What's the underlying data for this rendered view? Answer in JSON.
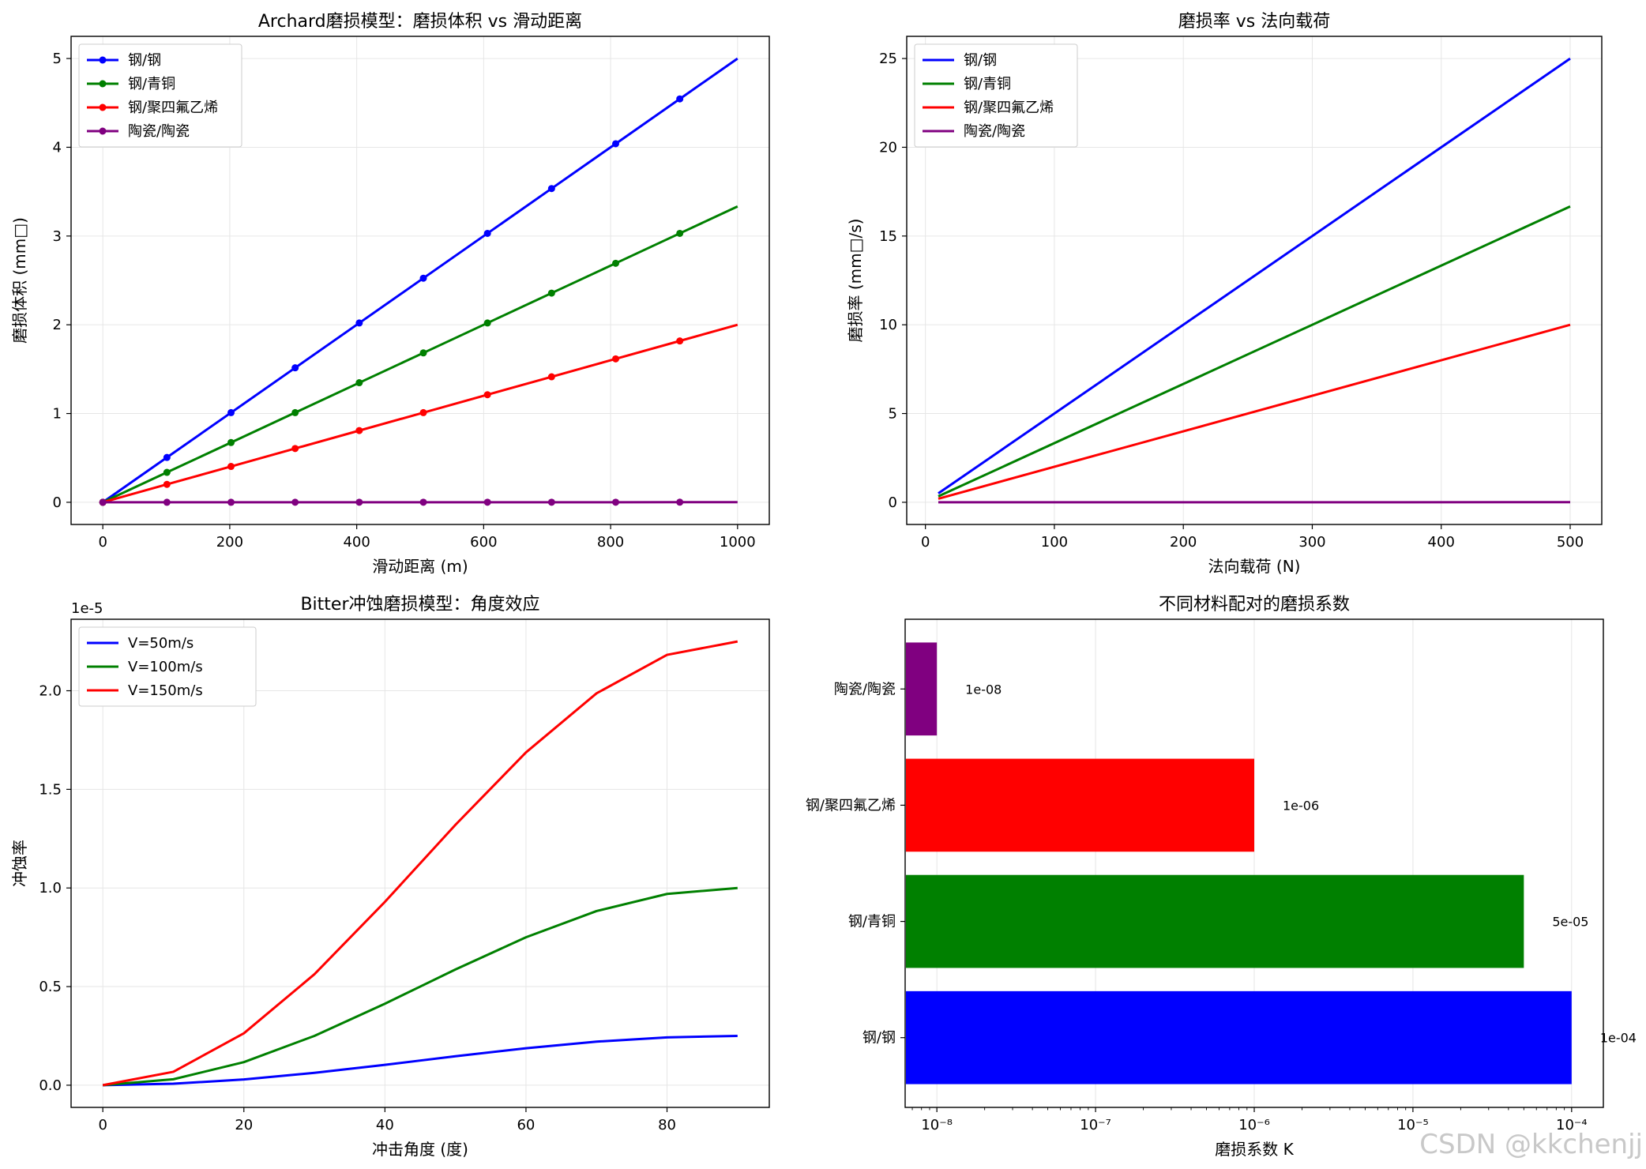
{
  "chart_data": [
    {
      "type": "line",
      "title": "Archard磨损模型：磨损体积 vs 滑动距离",
      "xlabel": "滑动距离 (m)",
      "ylabel": "磨损体积 (mm□)",
      "xlim": [
        -50,
        1050
      ],
      "ylim": [
        -0.25,
        5.25
      ],
      "xticks": [
        0,
        200,
        400,
        600,
        800,
        1000
      ],
      "yticks": [
        0,
        1,
        2,
        3,
        4,
        5
      ],
      "grid": true,
      "legend": "top-left",
      "markers": true,
      "x": [
        0,
        101,
        202,
        303,
        404,
        505,
        606,
        707,
        808,
        909,
        1000
      ],
      "series": [
        {
          "name": "钢/钢",
          "color": "#0000ff",
          "values": [
            0,
            0.505,
            1.01,
            1.515,
            2.02,
            2.525,
            3.03,
            3.535,
            4.04,
            4.545,
            5.0
          ]
        },
        {
          "name": "钢/青铜",
          "color": "#008000",
          "values": [
            0,
            0.337,
            0.673,
            1.01,
            1.347,
            1.683,
            2.02,
            2.357,
            2.693,
            3.03,
            3.333
          ]
        },
        {
          "name": "钢/聚四氟乙烯",
          "color": "#ff0000",
          "values": [
            0,
            0.202,
            0.404,
            0.606,
            0.808,
            1.01,
            1.212,
            1.414,
            1.616,
            1.818,
            2.0
          ]
        },
        {
          "name": "陶瓷/陶瓷",
          "color": "#800080",
          "values": [
            0,
            0.0001,
            0.0002,
            0.0003,
            0.0004,
            0.0005,
            0.0006,
            0.0007,
            0.0008,
            0.0009,
            0.001
          ]
        }
      ]
    },
    {
      "type": "line",
      "title": "磨损率 vs 法向载荷",
      "xlabel": "法向载荷 (N)",
      "ylabel": "磨损率 (mm□/s)",
      "xlim": [
        -14.5,
        524.5
      ],
      "ylim": [
        -1.25,
        26.25
      ],
      "xticks": [
        0,
        100,
        200,
        300,
        400,
        500
      ],
      "yticks": [
        0,
        5,
        10,
        15,
        20,
        25
      ],
      "grid": true,
      "legend": "top-left",
      "markers": false,
      "x": [
        10,
        500
      ],
      "series": [
        {
          "name": "钢/钢",
          "color": "#0000ff",
          "values": [
            0.5,
            25
          ]
        },
        {
          "name": "钢/青铜",
          "color": "#008000",
          "values": [
            0.333,
            16.667
          ]
        },
        {
          "name": "钢/聚四氟乙烯",
          "color": "#ff0000",
          "values": [
            0.2,
            10
          ]
        },
        {
          "name": "陶瓷/陶瓷",
          "color": "#800080",
          "values": [
            0.0001,
            0.005
          ]
        }
      ]
    },
    {
      "type": "line",
      "title": "Bitter冲蚀磨损模型：角度效应",
      "xlabel": "冲击角度 (度)",
      "ylabel": "冲蚀率",
      "offset_text": "1e-5",
      "xlim": [
        -4.5,
        94.5
      ],
      "ylim": [
        -0.1125,
        2.3625
      ],
      "xticks": [
        0,
        20,
        40,
        60,
        80
      ],
      "yticks": [
        0.0,
        0.5,
        1.0,
        1.5,
        2.0
      ],
      "ytick_labels": [
        "0.0",
        "0.5",
        "1.0",
        "1.5",
        "2.0"
      ],
      "grid": true,
      "legend": "top-left",
      "markers": false,
      "x": [
        0,
        10,
        20,
        30,
        40,
        45,
        50,
        60,
        70,
        80,
        90
      ],
      "series": [
        {
          "name": "V=50m/s",
          "color": "#0000ff",
          "values": [
            0,
            0.0075,
            0.0292,
            0.0625,
            0.1033,
            0.125,
            0.1467,
            0.1875,
            0.2208,
            0.2425,
            0.25
          ]
        },
        {
          "name": "V=100m/s",
          "color": "#008000",
          "values": [
            0,
            0.0302,
            0.117,
            0.25,
            0.4132,
            0.5,
            0.5868,
            0.75,
            0.883,
            0.9698,
            1.0
          ]
        },
        {
          "name": "V=150m/s",
          "color": "#ff0000",
          "values": [
            0,
            0.0679,
            0.2632,
            0.5625,
            0.9297,
            1.125,
            1.3203,
            1.6875,
            1.9868,
            2.1821,
            2.25
          ]
        }
      ]
    },
    {
      "type": "bar",
      "orientation": "horizontal",
      "title": "不同材料配对的磨损系数",
      "xlabel": "磨损系数 K",
      "xscale": "log",
      "xlim_exp": [
        -8.2,
        -3.8
      ],
      "xtick_exps": [
        -8,
        -7,
        -6,
        -5,
        -4
      ],
      "xtick_labels": [
        "10⁻⁸",
        "10⁻⁷",
        "10⁻⁶",
        "10⁻⁵",
        "10⁻⁴"
      ],
      "grid": true,
      "categories": [
        "钢/钢",
        "钢/青铜",
        "钢/聚四氟乙烯",
        "陶瓷/陶瓷"
      ],
      "values": [
        0.0001,
        5e-05,
        1e-06,
        1e-08
      ],
      "value_labels": [
        "1e-04",
        "5e-05",
        "1e-06",
        "1e-08"
      ],
      "colors": [
        "#0000ff",
        "#008000",
        "#ff0000",
        "#800080"
      ]
    }
  ],
  "watermark": "CSDN @kkchenjj"
}
